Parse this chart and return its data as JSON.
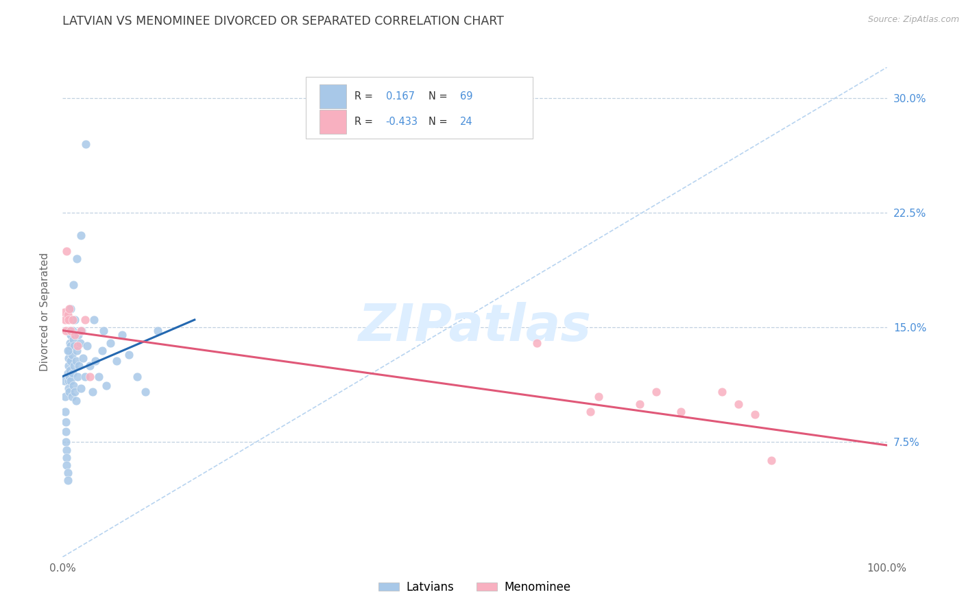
{
  "title": "LATVIAN VS MENOMINEE DIVORCED OR SEPARATED CORRELATION CHART",
  "source_text": "Source: ZipAtlas.com",
  "ylabel": "Divorced or Separated",
  "latvian_R": 0.167,
  "latvian_N": 69,
  "menominee_R": -0.433,
  "menominee_N": 24,
  "latvian_dot_color": "#a8c8e8",
  "menominee_dot_color": "#f8b0c0",
  "latvian_line_color": "#2468b0",
  "menominee_line_color": "#e05878",
  "diagonal_color": "#b8d4f0",
  "background_color": "#ffffff",
  "grid_color": "#c0d0e0",
  "title_color": "#404040",
  "right_label_color": "#4a8fd9",
  "watermark_color": "#ddeeff",
  "xlim_min": 0.0,
  "xlim_max": 1.0,
  "ylim_min": 0.0,
  "ylim_max": 0.32,
  "ytick_vals": [
    0.075,
    0.15,
    0.225,
    0.3
  ],
  "ytick_labels": [
    "7.5%",
    "15.0%",
    "22.5%",
    "30.0%"
  ],
  "lat_line_x0": 0.0,
  "lat_line_y0": 0.118,
  "lat_line_x1": 0.16,
  "lat_line_y1": 0.155,
  "men_line_x0": 0.0,
  "men_line_y0": 0.148,
  "men_line_x1": 1.0,
  "men_line_y1": 0.073,
  "lat_scatter_x": [
    0.002,
    0.003,
    0.003,
    0.004,
    0.004,
    0.004,
    0.005,
    0.005,
    0.005,
    0.006,
    0.006,
    0.006,
    0.007,
    0.007,
    0.007,
    0.007,
    0.008,
    0.008,
    0.008,
    0.009,
    0.009,
    0.01,
    0.01,
    0.01,
    0.01,
    0.011,
    0.011,
    0.012,
    0.012,
    0.013,
    0.013,
    0.014,
    0.014,
    0.015,
    0.015,
    0.016,
    0.016,
    0.017,
    0.018,
    0.019,
    0.02,
    0.021,
    0.022,
    0.023,
    0.025,
    0.027,
    0.03,
    0.033,
    0.036,
    0.04,
    0.044,
    0.048,
    0.053,
    0.058,
    0.065,
    0.072,
    0.08,
    0.09,
    0.1,
    0.115,
    0.05,
    0.038,
    0.028,
    0.022,
    0.017,
    0.013,
    0.01,
    0.008,
    0.006
  ],
  "lat_scatter_y": [
    0.115,
    0.105,
    0.095,
    0.088,
    0.082,
    0.075,
    0.07,
    0.065,
    0.06,
    0.055,
    0.05,
    0.12,
    0.115,
    0.11,
    0.125,
    0.13,
    0.118,
    0.135,
    0.108,
    0.122,
    0.14,
    0.128,
    0.115,
    0.138,
    0.145,
    0.105,
    0.132,
    0.12,
    0.148,
    0.112,
    0.142,
    0.125,
    0.138,
    0.108,
    0.155,
    0.128,
    0.102,
    0.135,
    0.118,
    0.145,
    0.125,
    0.14,
    0.11,
    0.148,
    0.13,
    0.118,
    0.138,
    0.125,
    0.108,
    0.128,
    0.118,
    0.135,
    0.112,
    0.14,
    0.128,
    0.145,
    0.132,
    0.118,
    0.108,
    0.148,
    0.148,
    0.155,
    0.27,
    0.21,
    0.195,
    0.178,
    0.162,
    0.148,
    0.135
  ],
  "men_scatter_x": [
    0.002,
    0.003,
    0.004,
    0.005,
    0.006,
    0.007,
    0.008,
    0.01,
    0.012,
    0.015,
    0.018,
    0.022,
    0.027,
    0.033,
    0.575,
    0.65,
    0.7,
    0.72,
    0.75,
    0.64,
    0.8,
    0.82,
    0.84,
    0.86
  ],
  "men_scatter_y": [
    0.16,
    0.155,
    0.148,
    0.2,
    0.158,
    0.155,
    0.162,
    0.148,
    0.155,
    0.145,
    0.138,
    0.148,
    0.155,
    0.118,
    0.14,
    0.105,
    0.1,
    0.108,
    0.095,
    0.095,
    0.108,
    0.1,
    0.093,
    0.063
  ]
}
